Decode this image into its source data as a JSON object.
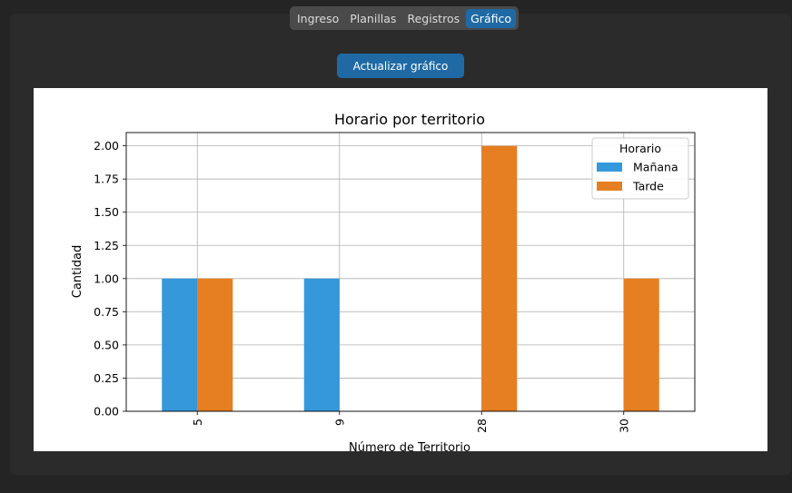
{
  "tabs": [
    {
      "label": "Ingreso",
      "active": false
    },
    {
      "label": "Planillas",
      "active": false
    },
    {
      "label": "Registros",
      "active": false
    },
    {
      "label": "Gráfico",
      "active": true
    }
  ],
  "update_button": {
    "label": "Actualizar gráfico"
  },
  "colors": {
    "accent": "#1f6aa5",
    "manana": "#3498db",
    "tarde": "#e67e22"
  },
  "chart_data": {
    "type": "bar",
    "title": "Horario por territorio",
    "xlabel": "Número de Territorio",
    "ylabel": "Cantidad",
    "categories": [
      "5",
      "9",
      "28",
      "30"
    ],
    "series": [
      {
        "name": "Mañana",
        "values": [
          1,
          1,
          0,
          0
        ],
        "color": "#3498db"
      },
      {
        "name": "Tarde",
        "values": [
          1,
          0,
          2,
          1
        ],
        "color": "#e67e22"
      }
    ],
    "ylim": [
      0,
      2.1
    ],
    "yticks": [
      "0.00",
      "0.25",
      "0.50",
      "0.75",
      "1.00",
      "1.25",
      "1.50",
      "1.75",
      "2.00"
    ],
    "grid": true,
    "legend": {
      "title": "Horario",
      "placement": "top-right"
    }
  }
}
